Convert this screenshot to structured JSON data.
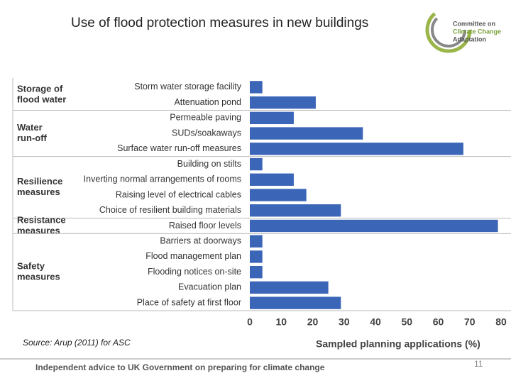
{
  "title": "Use of flood protection measures in new buildings",
  "logo": {
    "lines": [
      "Committee on",
      "Climate Change",
      "Adaptation"
    ]
  },
  "source": "Source: Arup (2011) for ASC",
  "footer": "Independent advice to UK Government on preparing for climate change",
  "page_number": "11",
  "chart_data": {
    "type": "bar",
    "orientation": "horizontal",
    "categories": [
      "Storm water storage facility",
      "Attenuation pond",
      "Permeable paving",
      "SUDs/soakaways",
      "Surface water run-off measures",
      "Building on stilts",
      "Inverting normal arrangements of rooms",
      "Raising level of electrical cables",
      "Choice of resilient building materials",
      "Raised floor levels",
      "Barriers at doorways",
      "Flood management plan",
      "Flooding notices on-site",
      "Evacuation plan",
      "Place of safety at first floor"
    ],
    "group_labels": [
      [
        "Storage of",
        "flood water"
      ],
      null,
      [
        "Water",
        "run-off"
      ],
      null,
      null,
      [
        "Resilience",
        "measures"
      ],
      null,
      null,
      null,
      [
        "Resistance",
        "measures"
      ],
      [
        "Safety",
        "measures"
      ],
      null,
      null,
      null,
      null
    ],
    "values": [
      4,
      21,
      14,
      36,
      68,
      4,
      14,
      18,
      29,
      79,
      4,
      4,
      4,
      25,
      29
    ],
    "color": "#3b66b8",
    "xlabel": "Sampled planning applications (%)",
    "xlim": [
      0,
      80
    ],
    "xticks": [
      0,
      10,
      20,
      30,
      40,
      50,
      60,
      70,
      80
    ]
  }
}
